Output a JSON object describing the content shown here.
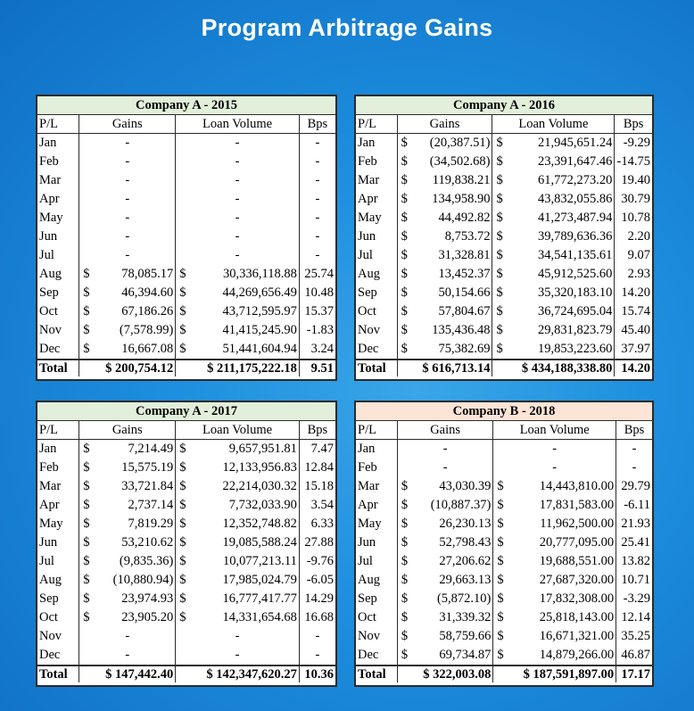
{
  "page": {
    "title": "Program Arbitrage Gains"
  },
  "headers": {
    "pl": "P/L",
    "gains": "Gains",
    "loan": "Loan Volume",
    "bps": "Bps"
  },
  "tables": [
    {
      "id": "p2015",
      "company": "Company A - 2015",
      "style": "green",
      "rows": [
        {
          "m": "Jan",
          "g": "-",
          "l": "-",
          "b": "-"
        },
        {
          "m": "Feb",
          "g": "-",
          "l": "-",
          "b": "-"
        },
        {
          "m": "Mar",
          "g": "-",
          "l": "-",
          "b": "-"
        },
        {
          "m": "Apr",
          "g": "-",
          "l": "-",
          "b": "-"
        },
        {
          "m": "May",
          "g": "-",
          "l": "-",
          "b": "-"
        },
        {
          "m": "Jun",
          "g": "-",
          "l": "-",
          "b": "-"
        },
        {
          "m": "Jul",
          "g": "-",
          "l": "-",
          "b": "-"
        },
        {
          "m": "Aug",
          "g": "78,085.17",
          "l": "30,336,118.88",
          "b": "25.74"
        },
        {
          "m": "Sep",
          "g": "46,394.60",
          "l": "44,269,656.49",
          "b": "10.48"
        },
        {
          "m": "Oct",
          "g": "67,186.26",
          "l": "43,712,595.97",
          "b": "15.37"
        },
        {
          "m": "Nov",
          "g": "(7,578.99)",
          "l": "41,415,245.90",
          "b": "-1.83"
        },
        {
          "m": "Dec",
          "g": "16,667.08",
          "l": "51,441,604.94",
          "b": "3.24"
        }
      ],
      "total": {
        "label": "Total",
        "g": "$ 200,754.12",
        "l": "$ 211,175,222.18",
        "b": "9.51"
      }
    },
    {
      "id": "p2016",
      "company": "Company A - 2016",
      "style": "green",
      "rows": [
        {
          "m": "Jan",
          "g": "(20,387.51)",
          "l": "21,945,651.24",
          "b": "-9.29"
        },
        {
          "m": "Feb",
          "g": "(34,502.68)",
          "l": "23,391,647.46",
          "b": "-14.75"
        },
        {
          "m": "Mar",
          "g": "119,838.21",
          "l": "61,772,273.20",
          "b": "19.40"
        },
        {
          "m": "Apr",
          "g": "134,958.90",
          "l": "43,832,055.86",
          "b": "30.79"
        },
        {
          "m": "May",
          "g": "44,492.82",
          "l": "41,273,487.94",
          "b": "10.78"
        },
        {
          "m": "Jun",
          "g": "8,753.72",
          "l": "39,789,636.36",
          "b": "2.20"
        },
        {
          "m": "Jul",
          "g": "31,328.81",
          "l": "34,541,135.61",
          "b": "9.07"
        },
        {
          "m": "Aug",
          "g": "13,452.37",
          "l": "45,912,525.60",
          "b": "2.93"
        },
        {
          "m": "Sep",
          "g": "50,154.66",
          "l": "35,320,183.10",
          "b": "14.20"
        },
        {
          "m": "Oct",
          "g": "57,804.67",
          "l": "36,724,695.04",
          "b": "15.74"
        },
        {
          "m": "Nov",
          "g": "135,436.48",
          "l": "29,831,823.79",
          "b": "45.40"
        },
        {
          "m": "Dec",
          "g": "75,382.69",
          "l": "19,853,223.60",
          "b": "37.97"
        }
      ],
      "total": {
        "label": "Total",
        "g": "$ 616,713.14",
        "l": "$ 434,188,338.80",
        "b": "14.20"
      }
    },
    {
      "id": "p2017",
      "company": "Company A - 2017",
      "style": "green",
      "rows": [
        {
          "m": "Jan",
          "g": "7,214.49",
          "l": "9,657,951.81",
          "b": "7.47"
        },
        {
          "m": "Feb",
          "g": "15,575.19",
          "l": "12,133,956.83",
          "b": "12.84"
        },
        {
          "m": "Mar",
          "g": "33,721.84",
          "l": "22,214,030.32",
          "b": "15.18"
        },
        {
          "m": "Apr",
          "g": "2,737.14",
          "l": "7,732,033.90",
          "b": "3.54"
        },
        {
          "m": "May",
          "g": "7,819.29",
          "l": "12,352,748.82",
          "b": "6.33"
        },
        {
          "m": "Jun",
          "g": "53,210.62",
          "l": "19,085,588.24",
          "b": "27.88"
        },
        {
          "m": "Jul",
          "g": "(9,835.36)",
          "l": "10,077,213.11",
          "b": "-9.76"
        },
        {
          "m": "Aug",
          "g": "(10,880.94)",
          "l": "17,985,024.79",
          "b": "-6.05"
        },
        {
          "m": "Sep",
          "g": "23,974.93",
          "l": "16,777,417.77",
          "b": "14.29"
        },
        {
          "m": "Oct",
          "g": "23,905.20",
          "l": "14,331,654.68",
          "b": "16.68"
        },
        {
          "m": "Nov",
          "g": "-",
          "l": "-",
          "b": "-"
        },
        {
          "m": "Dec",
          "g": "-",
          "l": "-",
          "b": "-"
        }
      ],
      "total": {
        "label": "Total",
        "g": "$ 147,442.40",
        "l": "$ 142,347,620.27",
        "b": "10.36"
      }
    },
    {
      "id": "p2018",
      "company": "Company B - 2018",
      "style": "peach",
      "rows": [
        {
          "m": "Jan",
          "g": "-",
          "l": "-",
          "b": "-"
        },
        {
          "m": "Feb",
          "g": "-",
          "l": "-",
          "b": "-"
        },
        {
          "m": "Mar",
          "g": "43,030.39",
          "l": "14,443,810.00",
          "b": "29.79"
        },
        {
          "m": "Apr",
          "g": "(10,887.37)",
          "l": "17,831,583.00",
          "b": "-6.11"
        },
        {
          "m": "May",
          "g": "26,230.13",
          "l": "11,962,500.00",
          "b": "21.93"
        },
        {
          "m": "Jun",
          "g": "52,798.43",
          "l": "20,777,095.00",
          "b": "25.41"
        },
        {
          "m": "Jul",
          "g": "27,206.62",
          "l": "19,688,551.00",
          "b": "13.82"
        },
        {
          "m": "Aug",
          "g": "29,663.13",
          "l": "27,687,320.00",
          "b": "10.71"
        },
        {
          "m": "Sep",
          "g": "(5,872.10)",
          "l": "17,832,308.00",
          "b": "-3.29"
        },
        {
          "m": "Oct",
          "g": "31,339.32",
          "l": "25,818,143.00",
          "b": "12.14"
        },
        {
          "m": "Nov",
          "g": "58,759.66",
          "l": "16,671,321.00",
          "b": "35.25"
        },
        {
          "m": "Dec",
          "g": "69,734.87",
          "l": "14,879,266.00",
          "b": "46.87"
        }
      ],
      "total": {
        "label": "Total",
        "g": "$ 322,003.08",
        "l": "$ 187,591,897.00",
        "b": "17.17"
      }
    }
  ],
  "currency_symbol": "$",
  "colors": {
    "background": "#1e8fde",
    "header_green": "#e2efda",
    "header_peach": "#fce4d6",
    "title_text": "#ffffff"
  }
}
